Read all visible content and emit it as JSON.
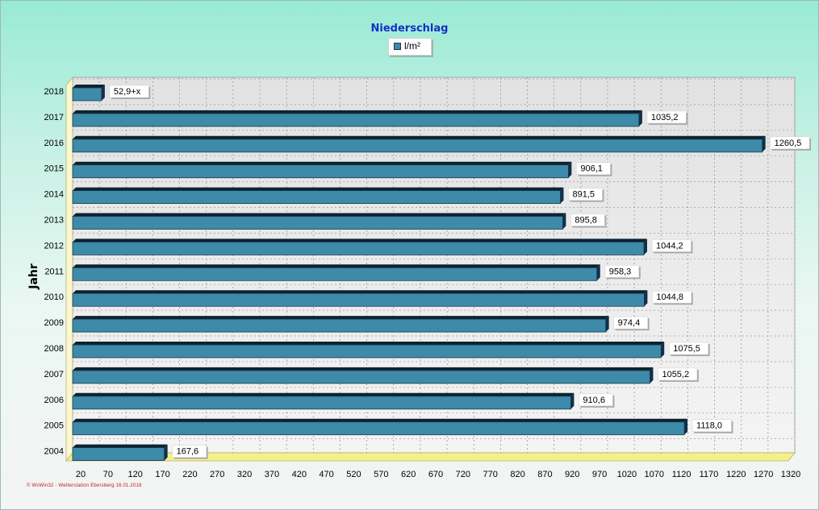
{
  "chart_data": {
    "type": "bar",
    "orientation": "horizontal",
    "title": "Niederschlag",
    "xlabel": "",
    "ylabel": "Jahr",
    "legend": {
      "position": "top-center",
      "entries": [
        "l/m²"
      ]
    },
    "grid": true,
    "xlim": [
      0,
      1320
    ],
    "x_ticks": [
      "20",
      "70",
      "120",
      "170",
      "220",
      "270",
      "320",
      "370",
      "420",
      "470",
      "520",
      "570",
      "620",
      "670",
      "720",
      "770",
      "820",
      "870",
      "920",
      "970",
      "1020",
      "1070",
      "1120",
      "1170",
      "1220",
      "1270",
      "1320"
    ],
    "categories": [
      "2018",
      "2017",
      "2016",
      "2015",
      "2014",
      "2013",
      "2012",
      "2011",
      "2010",
      "2009",
      "2008",
      "2007",
      "2006",
      "2005",
      "2004"
    ],
    "series": [
      {
        "name": "l/m²",
        "color": "#3d8aa9",
        "values": [
          52.9,
          1035.2,
          1260.5,
          906.1,
          891.5,
          895.8,
          1044.2,
          958.3,
          1044.8,
          974.4,
          1075.5,
          1055.2,
          910.6,
          1118.0,
          167.6
        ],
        "labels": [
          "52,9+x",
          "1035,2",
          "1260,5",
          "906,1",
          "891,5",
          "895,8",
          "1044,2",
          "958,3",
          "1044,8",
          "974,4",
          "1075,5",
          "1055,2",
          "910,6",
          "1118,0",
          "167,6"
        ]
      }
    ]
  },
  "footer": "© WsWin32 - Wetterstation Ebersberg 16.01.2018"
}
